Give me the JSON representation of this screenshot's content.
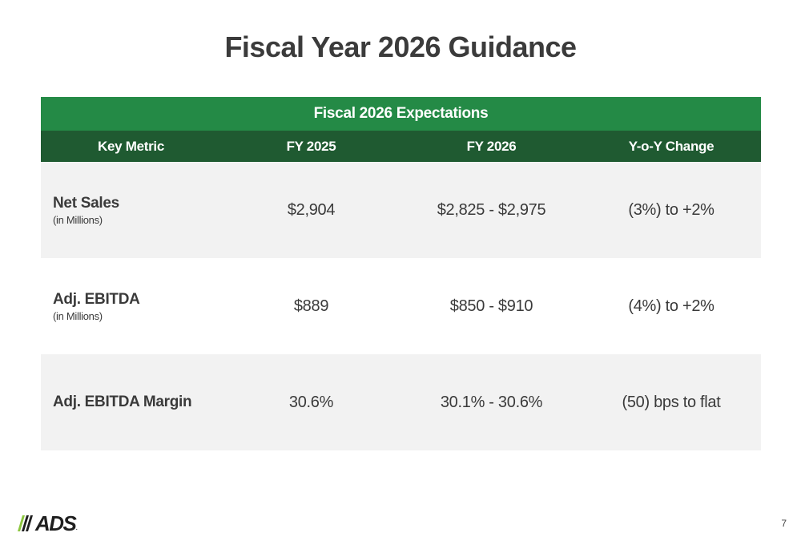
{
  "slide": {
    "title": "Fiscal Year 2026 Guidance",
    "page_number": "7"
  },
  "table": {
    "banner": "Fiscal 2026 Expectations",
    "headers": [
      "Key Metric",
      "FY 2025",
      "FY 2026",
      "Y-o-Y Change"
    ],
    "rows": [
      {
        "metric": "Net Sales",
        "sub": "(in Millions)",
        "fy2025": "$2,904",
        "fy2026": "$2,825 - $2,975",
        "yoy": "(3%) to +2%"
      },
      {
        "metric": "Adj. EBITDA",
        "sub": "(in Millions)",
        "fy2025": "$889",
        "fy2026": "$850 - $910",
        "yoy": "(4%) to +2%"
      },
      {
        "metric": "Adj. EBITDA Margin",
        "sub": "",
        "fy2025": "30.6%",
        "fy2026": "30.1% - 30.6%",
        "yoy": "(50) bps to flat"
      }
    ]
  },
  "logo": {
    "text": "ADS",
    "mark": "///"
  },
  "colors": {
    "banner_green": "#248a46",
    "header_green": "#1f5a31",
    "row_shade": "#f2f2f2",
    "logo_slash_green": "#8cc63f"
  }
}
